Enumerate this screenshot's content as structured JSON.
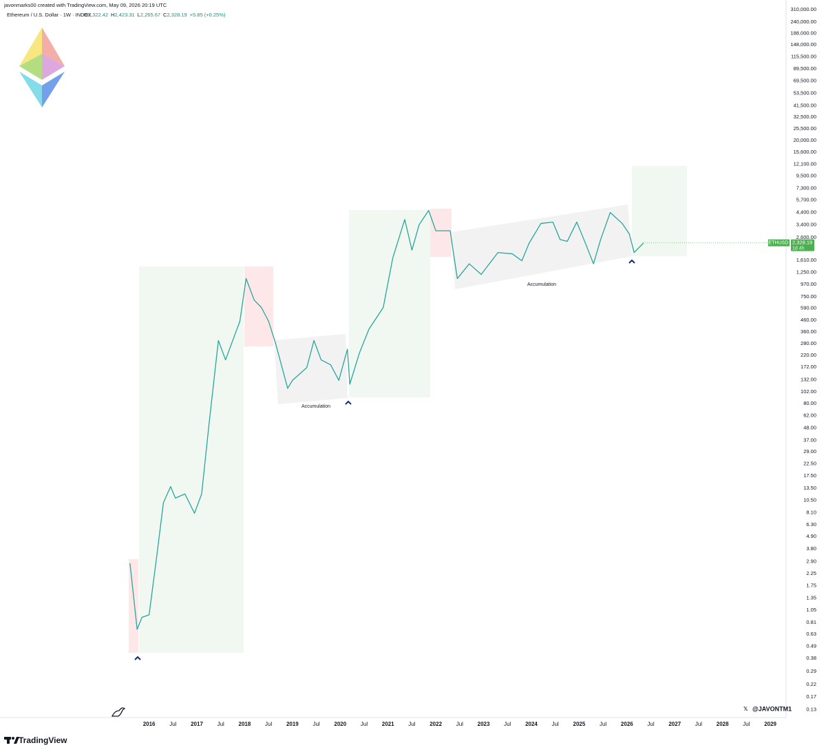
{
  "chart_data": {
    "type": "line",
    "credit": "javonmarks00 created with TradingView.com, May 09, 2026 20:19 UTC",
    "title": "Ethereum / U.S. Dollar · 1W · INDEX",
    "ohlc": [
      {
        "key": "O",
        "value": "2,322.42"
      },
      {
        "key": "H",
        "value": "2,423.31"
      },
      {
        "key": "L",
        "value": "2,265.67"
      },
      {
        "key": "C",
        "value": "2,328.19"
      }
    ],
    "change": "+5.85 (+0.25%)",
    "log_scale": true,
    "grid": false,
    "x": [
      2015.6,
      2015.75,
      2015.85,
      2016.0,
      2016.15,
      2016.3,
      2016.45,
      2016.55,
      2016.75,
      2016.95,
      2017.1,
      2017.25,
      2017.45,
      2017.6,
      2017.75,
      2017.9,
      2018.03,
      2018.2,
      2018.35,
      2018.5,
      2018.65,
      2018.9,
      2019.0,
      2019.3,
      2019.45,
      2019.6,
      2019.8,
      2019.97,
      2020.15,
      2020.2,
      2020.4,
      2020.6,
      2020.9,
      2021.1,
      2021.35,
      2021.5,
      2021.65,
      2021.85,
      2022.0,
      2022.3,
      2022.45,
      2022.7,
      2022.95,
      2023.3,
      2023.6,
      2023.8,
      2023.95,
      2024.2,
      2024.45,
      2024.6,
      2024.75,
      2024.95,
      2025.15,
      2025.3,
      2025.45,
      2025.65,
      2025.9,
      2026.05,
      2026.15,
      2026.35
    ],
    "series": [
      {
        "name": "ETHUSD",
        "color": "#26a69a",
        "values": [
          2.8,
          0.7,
          0.9,
          0.95,
          3,
          10,
          14,
          11,
          12,
          8,
          12,
          50,
          300,
          200,
          300,
          450,
          1100,
          700,
          600,
          450,
          280,
          110,
          130,
          170,
          300,
          200,
          180,
          130,
          250,
          120,
          230,
          380,
          600,
          1700,
          3800,
          2000,
          3400,
          4600,
          3000,
          3000,
          1100,
          1500,
          1200,
          1900,
          1850,
          1600,
          2300,
          3500,
          3600,
          2500,
          2400,
          3600,
          2200,
          1500,
          2500,
          4400,
          3500,
          2800,
          1900,
          2328.19
        ]
      }
    ],
    "last_price": {
      "symbol": "ETHUSD",
      "value": 2328.19,
      "label": "2,328.19",
      "countdown": "1d 4h",
      "color": "#4caf50"
    },
    "annotations": [
      "Accumulation",
      "Accumulation"
    ],
    "watermark": "@JAVONTM1",
    "brand": "TradingView",
    "xlim": [
      2012.88,
      2029.33
    ],
    "xticks": [
      2016,
      {
        "value": 2016.5,
        "label": "Jul"
      },
      2017,
      {
        "value": 2017.5,
        "label": "Jul"
      },
      2018,
      {
        "value": 2018.5,
        "label": "Jul"
      },
      2019,
      {
        "value": 2019.5,
        "label": "Jul"
      },
      2020,
      {
        "value": 2020.5,
        "label": "Jul"
      },
      2021,
      {
        "value": 2021.5,
        "label": "Jul"
      },
      2022,
      {
        "value": 2022.5,
        "label": "Jul"
      },
      2023,
      {
        "value": 2023.5,
        "label": "Jul"
      },
      2024,
      {
        "value": 2024.5,
        "label": "Jul"
      },
      2025,
      {
        "value": 2025.5,
        "label": "Jul"
      },
      2026,
      {
        "value": 2026.5,
        "label": "Jul"
      },
      2027,
      {
        "value": 2027.5,
        "label": "Jul"
      },
      2028,
      {
        "value": 2028.5,
        "label": "Jul"
      },
      2029
    ],
    "ylim": [
      0.11,
      380000
    ],
    "yticks": [
      {
        "value": 310000,
        "label": "310,000.00"
      },
      {
        "value": 240000,
        "label": "240,000.00"
      },
      {
        "value": 188000,
        "label": "188,000.00"
      },
      {
        "value": 148000,
        "label": "148,000.00"
      },
      {
        "value": 115500,
        "label": "115,500.00"
      },
      {
        "value": 89500,
        "label": "89,500.00"
      },
      {
        "value": 69500,
        "label": "69,500.00"
      },
      {
        "value": 53500,
        "label": "53,500.00"
      },
      {
        "value": 41500,
        "label": "41,500.00"
      },
      {
        "value": 32500,
        "label": "32,500.00"
      },
      {
        "value": 25500,
        "label": "25,500.00"
      },
      {
        "value": 20000,
        "label": "20,000.00"
      },
      {
        "value": 15600,
        "label": "15,600.00"
      },
      {
        "value": 12100,
        "label": "12,100.00"
      },
      {
        "value": 9500,
        "label": "9,500.00"
      },
      {
        "value": 7300,
        "label": "7,300.00"
      },
      {
        "value": 5700,
        "label": "5,700.00"
      },
      {
        "value": 4400,
        "label": "4,400.00"
      },
      {
        "value": 3400,
        "label": "3,400.00"
      },
      {
        "value": 2600,
        "label": "2,600.00"
      },
      {
        "value": 1610,
        "label": "1,610.00"
      },
      {
        "value": 1250,
        "label": "1,250.00"
      },
      {
        "value": 970,
        "label": "970.00"
      },
      {
        "value": 750,
        "label": "750.00"
      },
      {
        "value": 590,
        "label": "590.00"
      },
      {
        "value": 460,
        "label": "460.00"
      },
      {
        "value": 360,
        "label": "360.00"
      },
      {
        "value": 280,
        "label": "280.00"
      },
      {
        "value": 220,
        "label": "220.00"
      },
      {
        "value": 172,
        "label": "172.00"
      },
      {
        "value": 132,
        "label": "132.00"
      },
      {
        "value": 102,
        "label": "102.00"
      },
      {
        "value": 80,
        "label": "80.00"
      },
      {
        "value": 62,
        "label": "62.00"
      },
      {
        "value": 48,
        "label": "48.00"
      },
      {
        "value": 37,
        "label": "37.00"
      },
      {
        "value": 29,
        "label": "29.00"
      },
      {
        "value": 22.5,
        "label": "22.50"
      },
      {
        "value": 17.5,
        "label": "17.50"
      },
      {
        "value": 13.5,
        "label": "13.50"
      },
      {
        "value": 10.5,
        "label": "10.50"
      },
      {
        "value": 8.1,
        "label": "8.10"
      },
      {
        "value": 6.3,
        "label": "6.30"
      },
      {
        "value": 4.9,
        "label": "4.90"
      },
      {
        "value": 3.8,
        "label": "3.80"
      },
      {
        "value": 2.9,
        "label": "2.90"
      },
      {
        "value": 2.25,
        "label": "2.25"
      },
      {
        "value": 1.75,
        "label": "1.75"
      },
      {
        "value": 1.35,
        "label": "1.35"
      },
      {
        "value": 1.05,
        "label": "1.05"
      },
      {
        "value": 0.81,
        "label": "0.81"
      },
      {
        "value": 0.63,
        "label": "0.63"
      },
      {
        "value": 0.49,
        "label": "0.49"
      },
      {
        "value": 0.38,
        "label": "0.38"
      },
      {
        "value": 0.29,
        "label": "0.29"
      },
      {
        "value": 0.22,
        "label": "0.22"
      },
      {
        "value": 0.17,
        "label": "0.17"
      },
      {
        "value": 0.13,
        "label": "0.13"
      }
    ]
  }
}
